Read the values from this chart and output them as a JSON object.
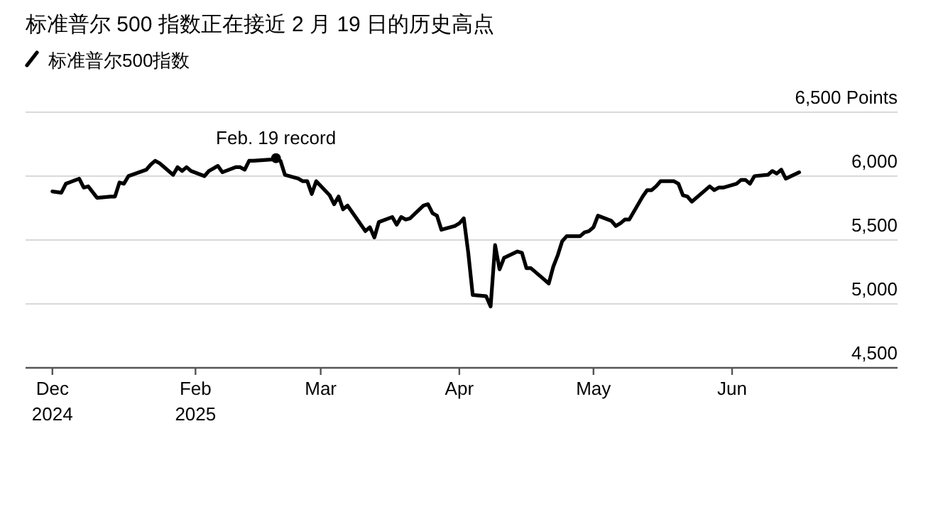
{
  "chart_data": {
    "type": "line",
    "title": "标准普尔 500 指数正在接近 2 月 19 日的历史高点",
    "x": [
      "2024-12-31",
      "2025-01-02",
      "2025-01-03",
      "2025-01-06",
      "2025-01-07",
      "2025-01-08",
      "2025-01-10",
      "2025-01-13",
      "2025-01-14",
      "2025-01-15",
      "2025-01-16",
      "2025-01-17",
      "2025-01-21",
      "2025-01-22",
      "2025-01-23",
      "2025-01-24",
      "2025-01-27",
      "2025-01-28",
      "2025-01-29",
      "2025-01-30",
      "2025-01-31",
      "2025-02-03",
      "2025-02-04",
      "2025-02-05",
      "2025-02-06",
      "2025-02-07",
      "2025-02-10",
      "2025-02-11",
      "2025-02-12",
      "2025-02-13",
      "2025-02-14",
      "2025-02-18",
      "2025-02-19",
      "2025-02-20",
      "2025-02-21",
      "2025-02-24",
      "2025-02-25",
      "2025-02-26",
      "2025-02-27",
      "2025-02-28",
      "2025-03-03",
      "2025-03-04",
      "2025-03-05",
      "2025-03-06",
      "2025-03-07",
      "2025-03-10",
      "2025-03-11",
      "2025-03-12",
      "2025-03-13",
      "2025-03-14",
      "2025-03-17",
      "2025-03-18",
      "2025-03-19",
      "2025-03-20",
      "2025-03-21",
      "2025-03-24",
      "2025-03-25",
      "2025-03-26",
      "2025-03-27",
      "2025-03-28",
      "2025-03-31",
      "2025-04-01",
      "2025-04-02",
      "2025-04-03",
      "2025-04-04",
      "2025-04-07",
      "2025-04-08",
      "2025-04-09",
      "2025-04-10",
      "2025-04-11",
      "2025-04-14",
      "2025-04-15",
      "2025-04-16",
      "2025-04-17",
      "2025-04-21",
      "2025-04-22",
      "2025-04-23",
      "2025-04-24",
      "2025-04-25",
      "2025-04-28",
      "2025-04-29",
      "2025-04-30",
      "2025-05-01",
      "2025-05-02",
      "2025-05-05",
      "2025-05-06",
      "2025-05-07",
      "2025-05-08",
      "2025-05-09",
      "2025-05-12",
      "2025-05-13",
      "2025-05-14",
      "2025-05-15",
      "2025-05-16",
      "2025-05-19",
      "2025-05-20",
      "2025-05-21",
      "2025-05-22",
      "2025-05-23",
      "2025-05-27",
      "2025-05-28",
      "2025-05-29",
      "2025-05-30",
      "2025-06-02",
      "2025-06-03",
      "2025-06-04",
      "2025-06-05",
      "2025-06-06",
      "2025-06-09",
      "2025-06-10",
      "2025-06-11",
      "2025-06-12",
      "2025-06-13",
      "2025-06-16"
    ],
    "series": [
      {
        "name": "标准普尔500指数",
        "color": "#000000",
        "values": [
          5880,
          5870,
          5940,
          5980,
          5910,
          5920,
          5830,
          5840,
          5840,
          5950,
          5940,
          6000,
          6050,
          6090,
          6120,
          6100,
          6010,
          6070,
          6040,
          6070,
          6040,
          6000,
          6040,
          6060,
          6080,
          6030,
          6070,
          6070,
          6050,
          6120,
          6120,
          6130,
          6140,
          6120,
          6010,
          5980,
          5960,
          5960,
          5860,
          5960,
          5850,
          5780,
          5840,
          5740,
          5770,
          5620,
          5570,
          5600,
          5520,
          5640,
          5680,
          5620,
          5680,
          5660,
          5670,
          5770,
          5780,
          5710,
          5690,
          5580,
          5610,
          5630,
          5670,
          5400,
          5070,
          5060,
          4980,
          5460,
          5270,
          5360,
          5410,
          5400,
          5280,
          5280,
          5160,
          5290,
          5380,
          5490,
          5530,
          5530,
          5560,
          5570,
          5600,
          5690,
          5650,
          5610,
          5630,
          5660,
          5660,
          5840,
          5890,
          5890,
          5920,
          5960,
          5960,
          5940,
          5850,
          5840,
          5800,
          5920,
          5890,
          5910,
          5910,
          5940,
          5970,
          5970,
          5940,
          6000,
          6010,
          6040,
          6020,
          6050,
          5980,
          6030
        ]
      }
    ],
    "xlim": [
      "2024-12-25",
      "2025-07-08"
    ],
    "xticks": [
      {
        "value": "2024-12-31",
        "label": "Dec\n2024"
      },
      {
        "value": "2025-02-01",
        "label": "Feb\n2025"
      },
      {
        "value": "2025-03-01",
        "label": "Mar"
      },
      {
        "value": "2025-04-01",
        "label": "Apr"
      },
      {
        "value": "2025-05-01",
        "label": "May"
      },
      {
        "value": "2025-06-01",
        "label": "Jun"
      }
    ],
    "ylim": [
      4500,
      6500
    ],
    "yticks": [
      {
        "value": 4500,
        "label": "4,500"
      },
      {
        "value": 5000,
        "label": "5,000"
      },
      {
        "value": 5500,
        "label": "5,500"
      },
      {
        "value": 6000,
        "label": "6,000"
      },
      {
        "value": 6500,
        "label": "6,500 Points"
      }
    ],
    "grid": "y",
    "legend": "top left",
    "annotations": [
      {
        "text": "Feb. 19 record",
        "x": "2025-02-19",
        "y": 6140
      }
    ]
  }
}
